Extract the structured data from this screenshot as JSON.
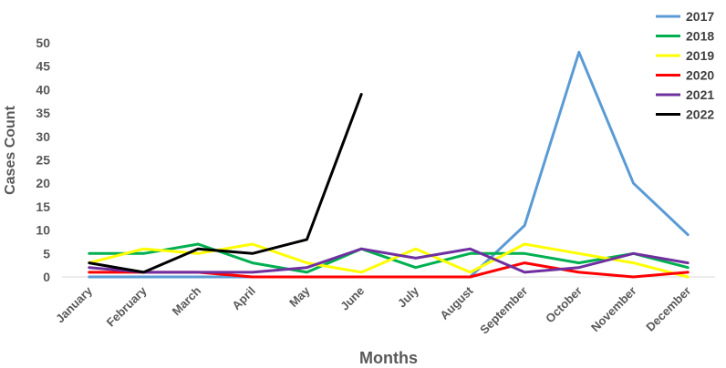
{
  "chart_data": {
    "type": "line",
    "title": "",
    "xlabel": "Months",
    "ylabel": "Cases Count",
    "ylim": [
      0,
      50
    ],
    "yticks": [
      "0",
      "5",
      "10",
      "15",
      "20",
      "25",
      "30",
      "35",
      "40",
      "45",
      "50"
    ],
    "categories": [
      "January",
      "February",
      "March",
      "April",
      "May",
      "June",
      "July",
      "August",
      "September",
      "October",
      "November",
      "December"
    ],
    "grid": false,
    "legend_position": "top-right",
    "series": [
      {
        "name": "2017",
        "color": "#5b9bd5",
        "values": [
          0,
          0,
          0,
          0,
          0,
          0,
          0,
          0,
          11,
          48,
          20,
          9
        ]
      },
      {
        "name": "2018",
        "color": "#00b050",
        "values": [
          5,
          5,
          7,
          3,
          1,
          6,
          2,
          5,
          5,
          3,
          5,
          2
        ]
      },
      {
        "name": "2019",
        "color": "#ffff00",
        "values": [
          3,
          6,
          5,
          7,
          3,
          1,
          6,
          1,
          7,
          5,
          3,
          0
        ]
      },
      {
        "name": "2020",
        "color": "#ff0000",
        "values": [
          1,
          1,
          1,
          0,
          0,
          0,
          0,
          0,
          3,
          1,
          0,
          1
        ]
      },
      {
        "name": "2021",
        "color": "#7030a0",
        "values": [
          2,
          1,
          1,
          1,
          2,
          6,
          4,
          6,
          1,
          2,
          5,
          3
        ]
      },
      {
        "name": "2022",
        "color": "#000000",
        "values": [
          3,
          1,
          6,
          5,
          8,
          39,
          null,
          null,
          null,
          null,
          null,
          null
        ]
      }
    ]
  }
}
